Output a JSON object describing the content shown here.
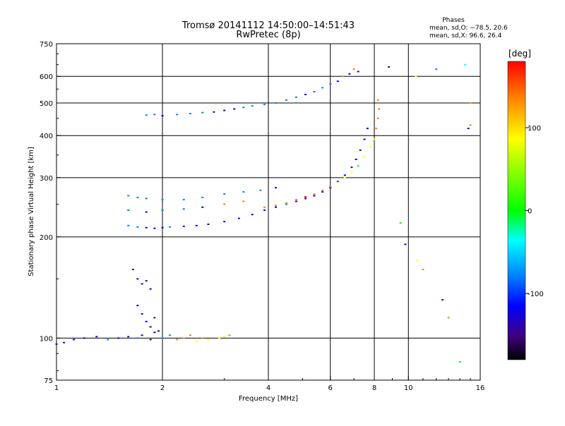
{
  "chart_data": {
    "type": "scatter",
    "title": "Tromsø 20141112 14:50:00–14:51:43",
    "subtitle": "RwPretec (8p)",
    "xlabel": "Frequency [MHz]",
    "ylabel": "Stationary phase Virtual Height [km]",
    "x_scale": "log",
    "y_scale": "log",
    "xlim": [
      1,
      16
    ],
    "ylim": [
      75,
      750
    ],
    "x_ticks": [
      1,
      2,
      4,
      6,
      8,
      10,
      16
    ],
    "y_ticks": [
      75,
      100,
      200,
      300,
      400,
      500,
      600,
      750
    ],
    "x_ticks_major": [
      2,
      4,
      6,
      8,
      10
    ],
    "grid": true,
    "annotation": {
      "title": "Phases",
      "line1": "mean, sd,O: −78.5, 20.6",
      "line2": "mean, sd,X:  96.6, 26.4"
    },
    "colorbar": {
      "label": "[deg]",
      "range": [
        -180,
        180
      ],
      "ticks": [
        100,
        0,
        -100
      ],
      "colors": [
        "#ff0000",
        "#ff8000",
        "#ffff00",
        "#00ff00",
        "#00ffff",
        "#0080ff",
        "#0000ff",
        "#400080",
        "#000000"
      ]
    },
    "series": [
      {
        "values": [
          [
            1.0,
            96,
            -150
          ],
          [
            1.05,
            97,
            -120
          ],
          [
            1.12,
            99,
            -110
          ],
          [
            1.2,
            100,
            -90
          ],
          [
            1.3,
            101,
            -100
          ],
          [
            1.4,
            99,
            -60
          ],
          [
            1.5,
            100,
            -80
          ],
          [
            1.6,
            101,
            -100
          ],
          [
            1.7,
            100,
            -60
          ],
          [
            1.75,
            102,
            -90
          ],
          [
            1.85,
            99,
            -130
          ],
          [
            1.9,
            104,
            -100
          ],
          [
            2.0,
            100,
            -50
          ],
          [
            2.1,
            102,
            -60
          ],
          [
            2.2,
            99,
            120
          ],
          [
            2.3,
            100,
            150
          ],
          [
            2.4,
            102,
            130
          ],
          [
            2.5,
            98,
            110
          ],
          [
            2.6,
            100,
            140
          ],
          [
            2.7,
            99,
            100
          ],
          [
            2.9,
            100,
            80
          ],
          [
            3.0,
            101,
            90
          ],
          [
            3.1,
            102,
            120
          ],
          [
            1.65,
            160,
            -120
          ],
          [
            1.7,
            150,
            -110
          ],
          [
            1.75,
            145,
            -90
          ],
          [
            1.8,
            148,
            -100
          ],
          [
            1.85,
            140,
            -80
          ],
          [
            1.7,
            125,
            -90
          ],
          [
            1.75,
            118,
            -100
          ],
          [
            1.8,
            112,
            -110
          ],
          [
            1.85,
            108,
            -80
          ],
          [
            1.9,
            115,
            -120
          ],
          [
            1.95,
            105,
            -100
          ],
          [
            1.6,
            216,
            -40
          ],
          [
            1.7,
            214,
            -60
          ],
          [
            1.8,
            213,
            -100
          ],
          [
            1.9,
            212,
            -70
          ],
          [
            2.0,
            213,
            -100
          ],
          [
            2.1,
            214,
            -50
          ],
          [
            2.3,
            215,
            -90
          ],
          [
            2.5,
            216,
            -70
          ],
          [
            2.7,
            218,
            -100
          ],
          [
            3.0,
            222,
            -90
          ],
          [
            3.3,
            227,
            -110
          ],
          [
            3.6,
            233,
            -100
          ],
          [
            3.9,
            240,
            -100
          ],
          [
            4.2,
            245,
            -70
          ],
          [
            4.5,
            250,
            -60
          ],
          [
            4.8,
            255,
            -100
          ],
          [
            5.1,
            260,
            -90
          ],
          [
            5.4,
            265,
            -110
          ],
          [
            5.7,
            272,
            -100
          ],
          [
            6.0,
            280,
            -100
          ],
          [
            6.3,
            292,
            -110
          ],
          [
            6.6,
            305,
            -100
          ],
          [
            6.9,
            322,
            -120
          ],
          [
            7.1,
            340,
            -110
          ],
          [
            7.3,
            362,
            -120
          ],
          [
            7.5,
            390,
            -100
          ],
          [
            7.65,
            420,
            -90
          ],
          [
            3.9,
            245,
            150
          ],
          [
            4.2,
            248,
            130
          ],
          [
            4.5,
            252,
            150
          ],
          [
            4.8,
            258,
            140
          ],
          [
            5.1,
            263,
            160
          ],
          [
            5.4,
            268,
            130
          ],
          [
            5.7,
            275,
            120
          ],
          [
            6.0,
            282,
            120
          ],
          [
            6.3,
            290,
            100
          ],
          [
            6.6,
            300,
            110
          ],
          [
            6.9,
            312,
            80
          ],
          [
            7.2,
            325,
            60
          ],
          [
            7.5,
            345,
            70
          ],
          [
            7.8,
            370,
            90
          ],
          [
            8.0,
            390,
            110
          ],
          [
            8.1,
            420,
            130
          ],
          [
            8.2,
            450,
            140
          ],
          [
            8.25,
            480,
            150
          ],
          [
            8.2,
            510,
            120
          ],
          [
            1.6,
            265,
            -50
          ],
          [
            1.7,
            262,
            -60
          ],
          [
            1.8,
            260,
            -40
          ],
          [
            2.0,
            258,
            -60
          ],
          [
            2.3,
            258,
            -40
          ],
          [
            2.6,
            262,
            -50
          ],
          [
            3.0,
            268,
            -40
          ],
          [
            3.4,
            272,
            -60
          ],
          [
            3.8,
            275,
            -50
          ],
          [
            4.2,
            280,
            -90
          ],
          [
            1.6,
            240,
            -40
          ],
          [
            1.8,
            237,
            -70
          ],
          [
            2.0,
            240,
            -50
          ],
          [
            2.3,
            242,
            -60
          ],
          [
            2.6,
            245,
            -80
          ],
          [
            3.0,
            250,
            140
          ],
          [
            3.4,
            255,
            120
          ],
          [
            1.8,
            460,
            -60
          ],
          [
            1.9,
            462,
            -40
          ],
          [
            2.0,
            458,
            -70
          ],
          [
            2.2,
            462,
            -60
          ],
          [
            2.4,
            465,
            -40
          ],
          [
            2.6,
            468,
            -60
          ],
          [
            2.8,
            470,
            -90
          ],
          [
            3.0,
            475,
            -100
          ],
          [
            3.2,
            480,
            -70
          ],
          [
            3.4,
            485,
            -50
          ],
          [
            3.6,
            490,
            -40
          ],
          [
            3.9,
            495,
            -60
          ],
          [
            4.2,
            500,
            -50
          ],
          [
            4.5,
            510,
            -40
          ],
          [
            4.8,
            520,
            -60
          ],
          [
            5.1,
            530,
            -70
          ],
          [
            5.4,
            540,
            -60
          ],
          [
            5.7,
            555,
            -50
          ],
          [
            6.0,
            570,
            -40
          ],
          [
            6.3,
            580,
            -90
          ],
          [
            6.5,
            600,
            130
          ],
          [
            6.8,
            610,
            -100
          ],
          [
            7.0,
            630,
            120
          ],
          [
            7.2,
            620,
            -80
          ],
          [
            8.8,
            640,
            -120
          ],
          [
            10.5,
            600,
            80
          ],
          [
            12.0,
            630,
            -60
          ],
          [
            14.5,
            650,
            -20
          ],
          [
            15.0,
            500,
            150
          ],
          [
            14.8,
            420,
            -80
          ],
          [
            9.5,
            220,
            30
          ],
          [
            9.8,
            190,
            -90
          ],
          [
            10.6,
            170,
            80
          ],
          [
            11.0,
            160,
            150
          ],
          [
            12.5,
            130,
            -130
          ],
          [
            13.0,
            115,
            150
          ],
          [
            14.0,
            85,
            30
          ],
          [
            15.0,
            430,
            150
          ]
        ]
      }
    ]
  }
}
